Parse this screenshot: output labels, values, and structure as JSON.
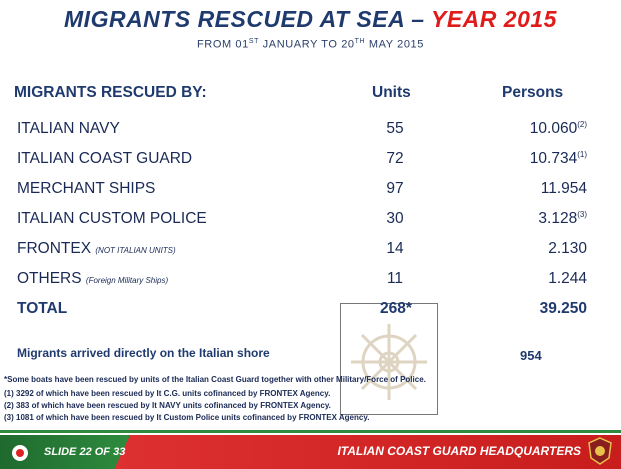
{
  "title": {
    "main": "MIGRANTS RESCUED AT SEA – ",
    "year": "YEAR 2015"
  },
  "subtitle": {
    "from": "FROM 01",
    "sup1": "ST",
    "mid": " JANUARY TO 20",
    "sup2": "TH",
    "end": " MAY 2015"
  },
  "headers": {
    "label": "MIGRANTS RESCUED BY:",
    "units": "Units",
    "persons": "Persons"
  },
  "rows": [
    {
      "label": "ITALIAN NAVY",
      "note": "",
      "units": "55",
      "persons": "10.060",
      "sup": "(2)"
    },
    {
      "label": "ITALIAN COAST GUARD",
      "note": "",
      "units": "72",
      "persons": "10.734",
      "sup": "(1)"
    },
    {
      "label": "MERCHANT SHIPS",
      "note": "",
      "units": "97",
      "persons": "11.954",
      "sup": ""
    },
    {
      "label": "ITALIAN CUSTOM POLICE",
      "note": "",
      "units": "30",
      "persons": "3.128",
      "sup": "(3)"
    },
    {
      "label": "FRONTEX",
      "note": "(NOT ITALIAN UNITS)",
      "units": "14",
      "persons": "2.130",
      "sup": ""
    },
    {
      "label": "OTHERS",
      "note": "(Foreign Military Ships)",
      "units": "11",
      "persons": "1.244",
      "sup": ""
    }
  ],
  "total": {
    "label": "TOTAL",
    "units": "268*",
    "persons": "39.250"
  },
  "shore": {
    "label": "Migrants arrived directly on the Italian shore",
    "value": "954"
  },
  "footnotes": {
    "main": "*Some boats have been rescued by units of the Italian Coast Guard together with other  Military/Force of Police.",
    "n1": "(1) 3292 of which have been rescued by It C.G. units cofinanced by FRONTEX Agency.",
    "n2": "(2) 383 of which have been rescued by It NAVY units cofinanced by FRONTEX Agency.",
    "n3": "(3) 1081 of which have been rescued by It Custom Police units cofinanced by FRONTEX Agency."
  },
  "footer": {
    "slide": "SLIDE 22 OF 33",
    "hq": "ITALIAN COAST GUARD HEADQUARTERS"
  },
  "colors": {
    "navy": "#1f3a6e",
    "red": "#e01b1b",
    "green": "#2e8b3e",
    "footer_red": "#c81d1d"
  },
  "icons": {
    "watermark": "ship-wheel-icon",
    "emblem": "coast-guard-emblem-icon",
    "slide_marker": "lifebuoy-icon"
  }
}
